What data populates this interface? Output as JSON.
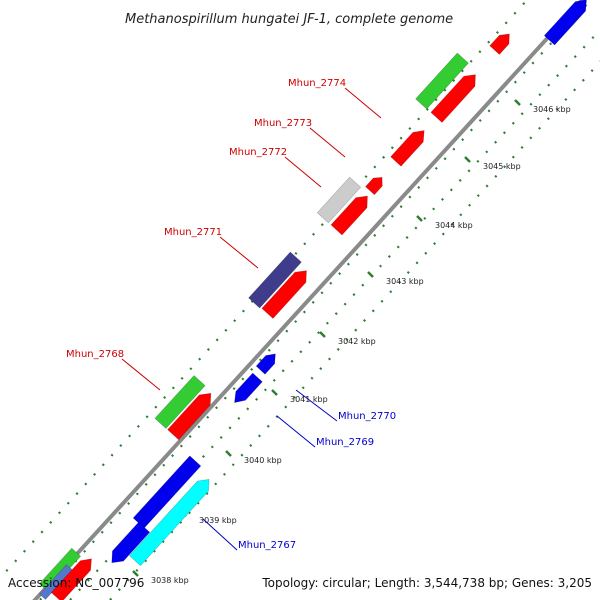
{
  "map_title": "Methanospirillum hungatei JF-1, complete genome",
  "footer": {
    "accession": "Accession: NC_007796",
    "summary": "Topology: circular; Length: 3,544,738 bp; Genes: 3,205"
  },
  "colors": {
    "backbone": "#8a8a8a",
    "tick": "#2f7d32",
    "label_red": "#cc0000",
    "label_blue": "#0000cc",
    "gene_red": "#ff0000",
    "gene_green": "#33cc33",
    "gene_blue": "#0000ee",
    "gene_cyan": "#00ffff",
    "gene_gray": "#cccccc",
    "gene_purple": "#3f3c8c",
    "gene_steel": "#5577cc"
  },
  "kbp_marks": [
    {
      "text": "3038 kbp"
    },
    {
      "text": "3039 kbp"
    },
    {
      "text": "3040 kbp"
    },
    {
      "text": "3041 kbp"
    },
    {
      "text": "3042 kbp"
    },
    {
      "text": "3043 kbp"
    },
    {
      "text": "3044 kbp"
    },
    {
      "text": "3045 kbp"
    },
    {
      "text": "3046 kbp"
    }
  ],
  "genes": [
    {
      "label": "Mhun_2774",
      "color": "green"
    },
    {
      "label": "Mhun_2773",
      "color": "red"
    },
    {
      "label": "Mhun_2772",
      "color": "gray"
    },
    {
      "label": "Mhun_2771",
      "color": "purple"
    },
    {
      "label": "Mhun_2768",
      "color": "green"
    },
    {
      "label": "Mhun_2770",
      "color": "blue"
    },
    {
      "label": "Mhun_2769",
      "color": "blue"
    },
    {
      "label": "Mhun_2767",
      "color": "cyan"
    }
  ]
}
